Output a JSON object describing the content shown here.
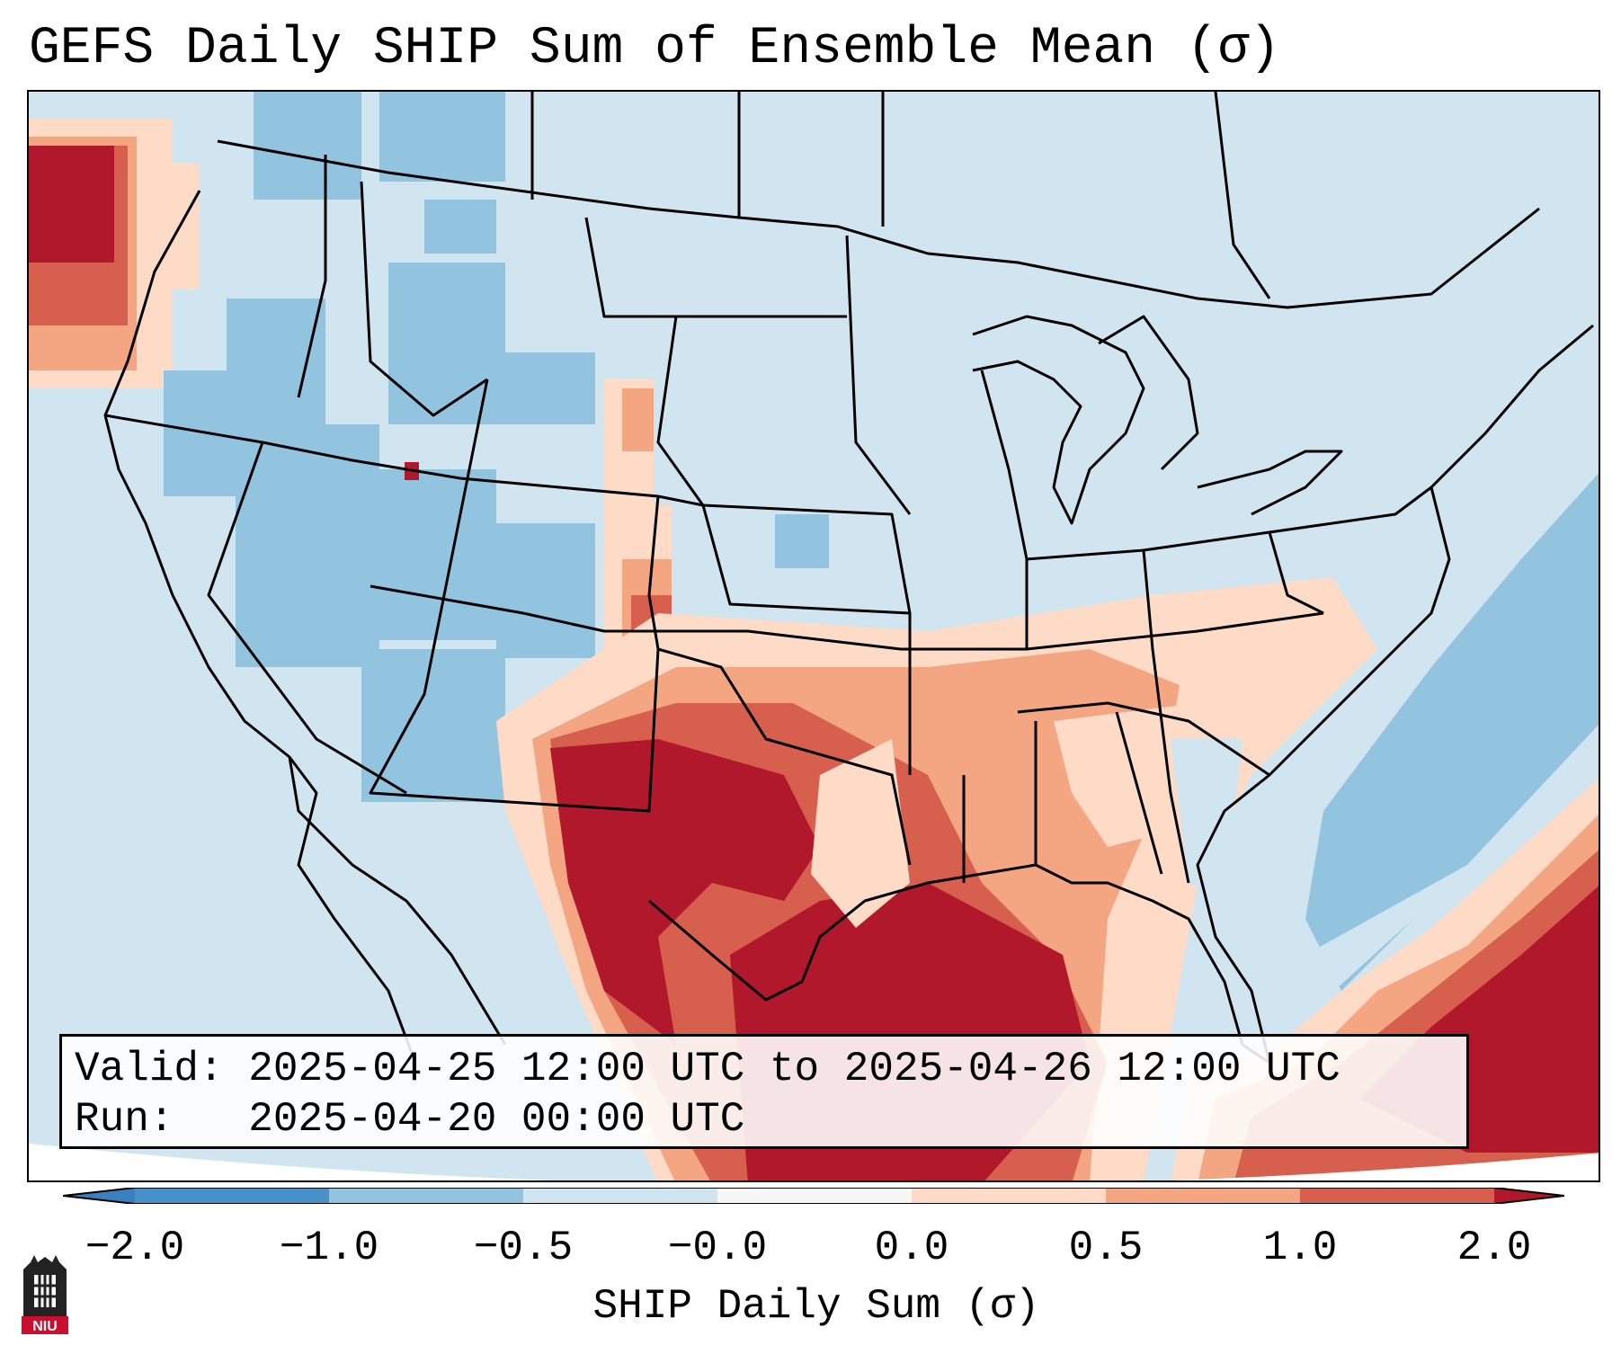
{
  "title": "GEFS Daily SHIP Sum of Ensemble Mean (σ)",
  "info": {
    "valid_label": "Valid:",
    "valid_value": "2025-04-25 12:00 UTC to 2025-04-26 12:00 UTC",
    "run_label": "Run:",
    "run_value": "2025-04-20 00:00 UTC"
  },
  "colorbar": {
    "label": "SHIP Daily Sum (σ)",
    "ticks": [
      "−2.0",
      "−1.0",
      "−0.5",
      "−0.0",
      "0.0",
      "0.5",
      "1.0",
      "2.0"
    ],
    "bins": [
      {
        "range": "< -2.0",
        "color": "#3a7fbf"
      },
      {
        "range": "-2.0 to -1.0",
        "color": "#4a90c8"
      },
      {
        "range": "-1.0 to -0.5",
        "color": "#92c4e0"
      },
      {
        "range": "-0.5 to 0.0",
        "color": "#d1e5f0"
      },
      {
        "range": "0.0",
        "color": "#f7f7f7"
      },
      {
        "range": "0.0 to 0.5",
        "color": "#fddbc7"
      },
      {
        "range": "0.5 to 1.0",
        "color": "#f4a582"
      },
      {
        "range": "1.0 to 2.0",
        "color": "#d6604d"
      },
      {
        "range": "> 2.0",
        "color": "#b2182b"
      }
    ]
  },
  "logo_text": "NIU"
}
